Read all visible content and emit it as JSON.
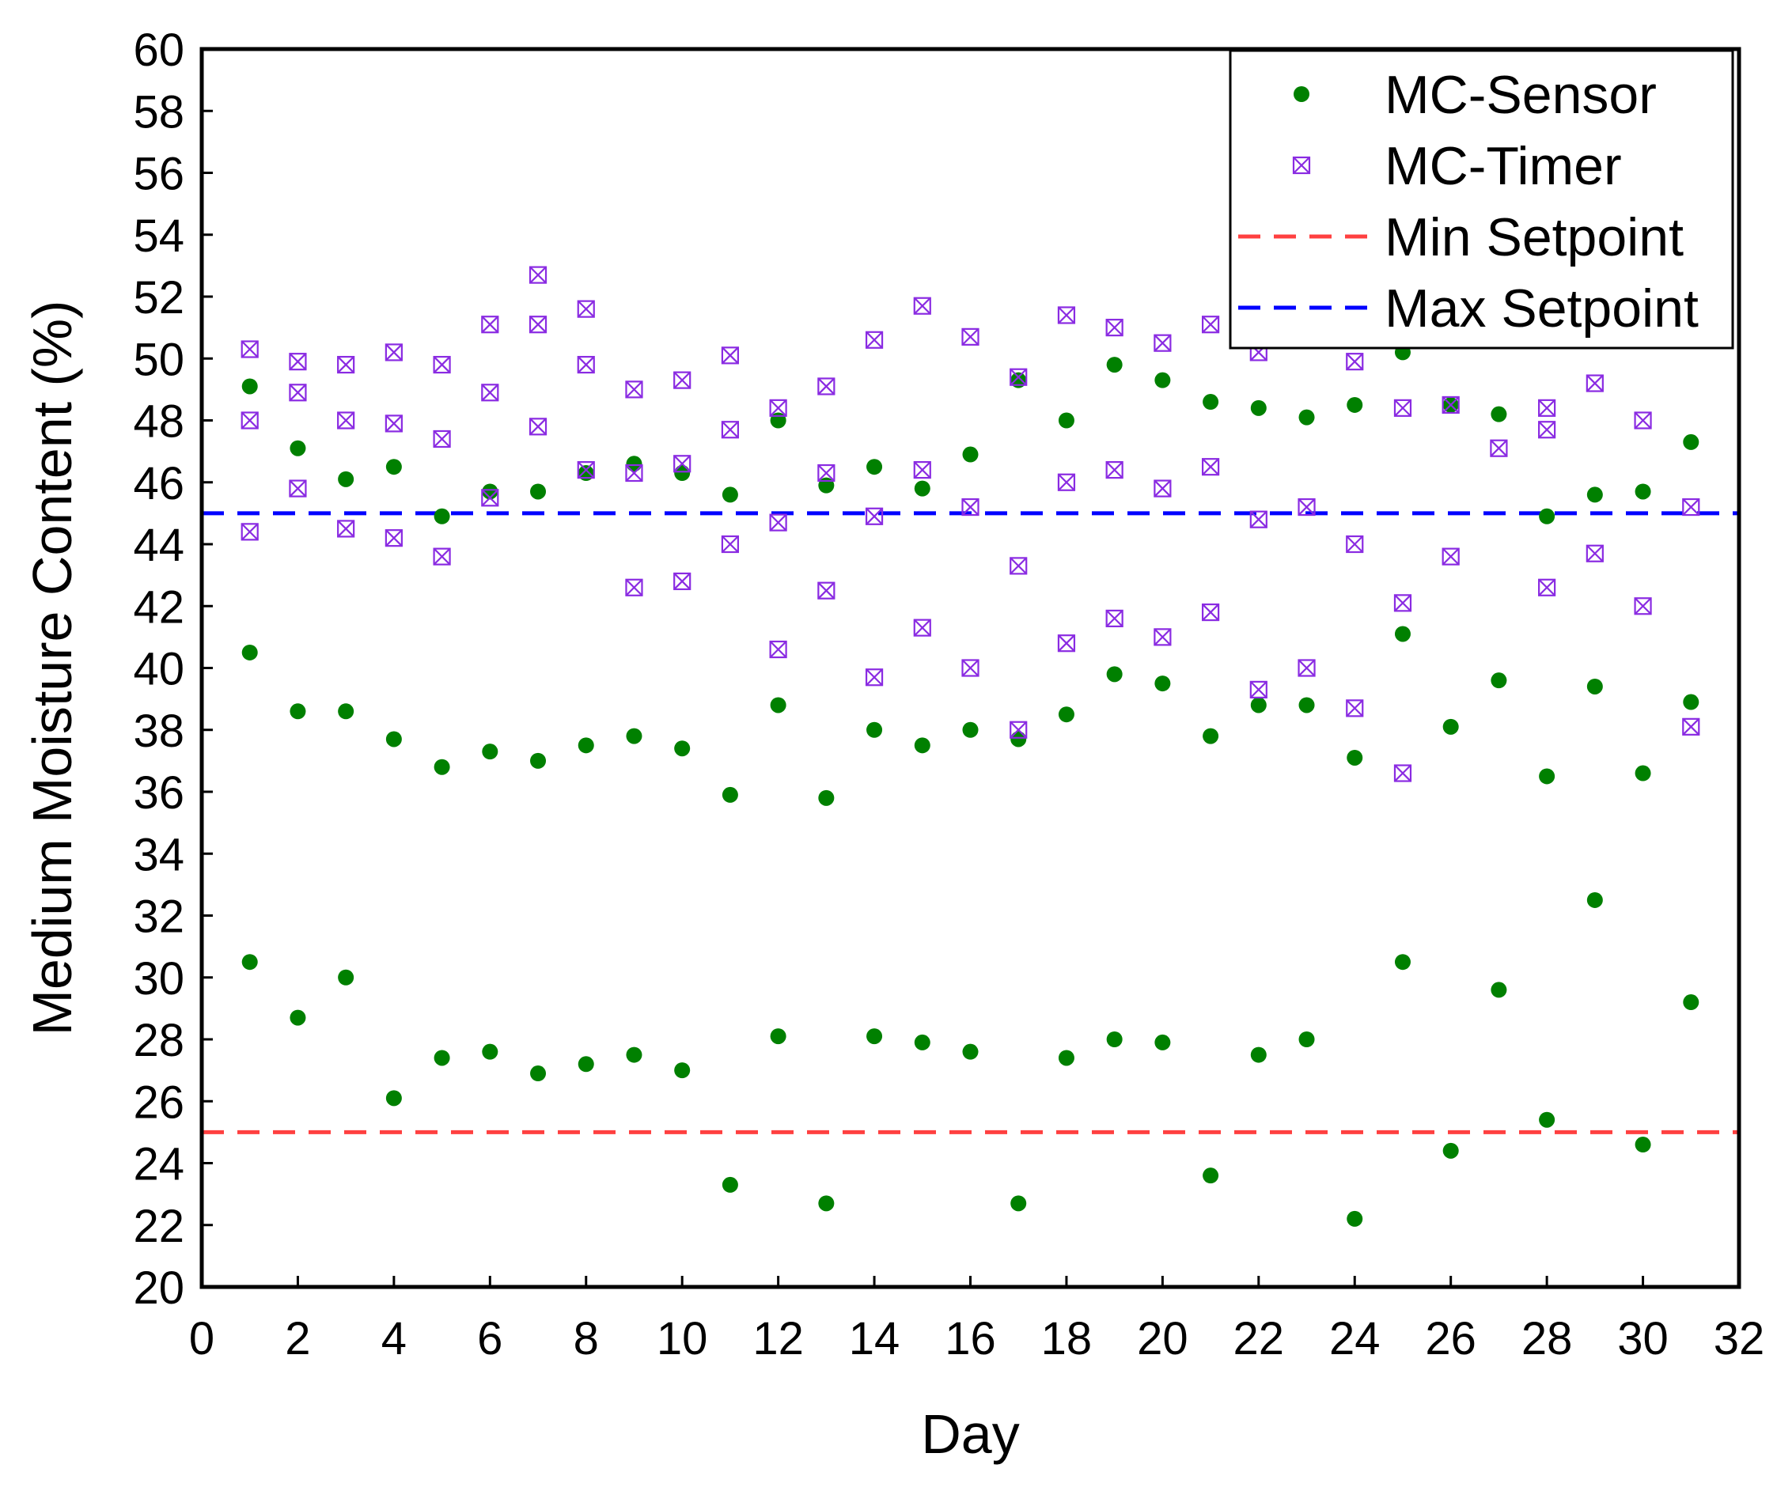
{
  "chart_data": {
    "type": "scatter",
    "title": "",
    "xlabel": "Day",
    "ylabel": "Medium Moisture Content (%)",
    "xlim": [
      0,
      32
    ],
    "ylim": [
      20,
      60
    ],
    "xticks": [
      0,
      2,
      4,
      6,
      8,
      10,
      12,
      14,
      16,
      18,
      20,
      22,
      24,
      26,
      28,
      30,
      32
    ],
    "yticks": [
      20,
      22,
      24,
      26,
      28,
      30,
      32,
      34,
      36,
      38,
      40,
      42,
      44,
      46,
      48,
      50,
      52,
      54,
      56,
      58,
      60
    ],
    "grid": false,
    "legend_position": "top-right",
    "series": [
      {
        "name": "MC-Sensor",
        "marker": "circle",
        "color": "#008000",
        "points": [
          [
            1,
            49.1
          ],
          [
            1,
            40.5
          ],
          [
            1,
            30.5
          ],
          [
            2,
            47.1
          ],
          [
            2,
            38.6
          ],
          [
            2,
            28.7
          ],
          [
            3,
            46.1
          ],
          [
            3,
            38.6
          ],
          [
            3,
            30.0
          ],
          [
            4,
            46.5
          ],
          [
            4,
            37.7
          ],
          [
            4,
            26.1
          ],
          [
            5,
            44.9
          ],
          [
            5,
            36.8
          ],
          [
            5,
            27.4
          ],
          [
            6,
            45.7
          ],
          [
            6,
            37.3
          ],
          [
            6,
            27.6
          ],
          [
            7,
            45.7
          ],
          [
            7,
            37.0
          ],
          [
            7,
            26.9
          ],
          [
            8,
            46.3
          ],
          [
            8,
            37.5
          ],
          [
            8,
            27.2
          ],
          [
            9,
            46.6
          ],
          [
            9,
            37.8
          ],
          [
            9,
            27.5
          ],
          [
            10,
            46.3
          ],
          [
            10,
            37.4
          ],
          [
            10,
            27.0
          ],
          [
            11,
            45.6
          ],
          [
            11,
            35.9
          ],
          [
            11,
            23.3
          ],
          [
            12,
            48.0
          ],
          [
            12,
            38.8
          ],
          [
            12,
            28.1
          ],
          [
            13,
            45.9
          ],
          [
            13,
            35.8
          ],
          [
            13,
            22.7
          ],
          [
            14,
            46.5
          ],
          [
            14,
            38.0
          ],
          [
            14,
            28.1
          ],
          [
            15,
            45.8
          ],
          [
            15,
            37.5
          ],
          [
            15,
            27.9
          ],
          [
            16,
            46.9
          ],
          [
            16,
            38.0
          ],
          [
            16,
            27.6
          ],
          [
            17,
            49.3
          ],
          [
            17,
            37.7
          ],
          [
            17,
            22.7
          ],
          [
            18,
            48.0
          ],
          [
            18,
            38.5
          ],
          [
            18,
            27.4
          ],
          [
            19,
            49.8
          ],
          [
            19,
            39.8
          ],
          [
            19,
            28.0
          ],
          [
            20,
            49.3
          ],
          [
            20,
            39.5
          ],
          [
            20,
            27.9
          ],
          [
            21,
            48.6
          ],
          [
            21,
            37.8
          ],
          [
            21,
            23.6
          ],
          [
            22,
            48.4
          ],
          [
            22,
            38.8
          ],
          [
            22,
            27.5
          ],
          [
            23,
            48.1
          ],
          [
            23,
            38.8
          ],
          [
            23,
            28.0
          ],
          [
            24,
            48.5
          ],
          [
            24,
            37.1
          ],
          [
            24,
            22.2
          ],
          [
            25,
            50.2
          ],
          [
            25,
            41.1
          ],
          [
            25,
            30.5
          ],
          [
            26,
            48.5
          ],
          [
            26,
            38.1
          ],
          [
            26,
            24.4
          ],
          [
            27,
            48.2
          ],
          [
            27,
            39.6
          ],
          [
            27,
            29.6
          ],
          [
            28,
            44.9
          ],
          [
            28,
            36.5
          ],
          [
            28,
            25.4
          ],
          [
            29,
            45.6
          ],
          [
            29,
            39.4
          ],
          [
            29,
            32.5
          ],
          [
            30,
            45.7
          ],
          [
            30,
            36.6
          ],
          [
            30,
            24.6
          ],
          [
            31,
            47.3
          ],
          [
            31,
            38.9
          ],
          [
            31,
            29.2
          ]
        ]
      },
      {
        "name": "MC-Timer",
        "marker": "boxed-x",
        "color": "#8a2be2",
        "points": [
          [
            1,
            50.3
          ],
          [
            1,
            48.0
          ],
          [
            1,
            44.4
          ],
          [
            2,
            49.9
          ],
          [
            2,
            48.9
          ],
          [
            2,
            45.8
          ],
          [
            3,
            49.8
          ],
          [
            3,
            48.0
          ],
          [
            3,
            44.5
          ],
          [
            4,
            50.2
          ],
          [
            4,
            47.9
          ],
          [
            4,
            44.2
          ],
          [
            5,
            49.8
          ],
          [
            5,
            47.4
          ],
          [
            5,
            43.6
          ],
          [
            6,
            51.1
          ],
          [
            6,
            48.9
          ],
          [
            6,
            45.5
          ],
          [
            7,
            52.7
          ],
          [
            7,
            51.1
          ],
          [
            7,
            47.8
          ],
          [
            8,
            51.6
          ],
          [
            8,
            49.8
          ],
          [
            8,
            46.4
          ],
          [
            9,
            49.0
          ],
          [
            9,
            46.3
          ],
          [
            9,
            42.6
          ],
          [
            10,
            49.3
          ],
          [
            10,
            46.6
          ],
          [
            10,
            42.8
          ],
          [
            11,
            50.1
          ],
          [
            11,
            47.7
          ],
          [
            11,
            44.0
          ],
          [
            12,
            48.4
          ],
          [
            12,
            44.7
          ],
          [
            12,
            40.6
          ],
          [
            13,
            49.1
          ],
          [
            13,
            46.3
          ],
          [
            13,
            42.5
          ],
          [
            14,
            50.6
          ],
          [
            14,
            44.9
          ],
          [
            14,
            39.7
          ],
          [
            15,
            51.7
          ],
          [
            15,
            46.4
          ],
          [
            15,
            41.3
          ],
          [
            16,
            50.7
          ],
          [
            16,
            45.2
          ],
          [
            16,
            40.0
          ],
          [
            17,
            49.4
          ],
          [
            17,
            43.3
          ],
          [
            17,
            38.0
          ],
          [
            18,
            51.4
          ],
          [
            18,
            46.0
          ],
          [
            18,
            40.8
          ],
          [
            19,
            51.0
          ],
          [
            19,
            46.4
          ],
          [
            19,
            41.6
          ],
          [
            20,
            50.5
          ],
          [
            20,
            45.8
          ],
          [
            20,
            41.0
          ],
          [
            21,
            51.1
          ],
          [
            21,
            46.5
          ],
          [
            21,
            41.8
          ],
          [
            22,
            50.2
          ],
          [
            22,
            44.8
          ],
          [
            22,
            39.3
          ],
          [
            23,
            45.2
          ],
          [
            23,
            40.0
          ],
          [
            24,
            49.9
          ],
          [
            24,
            44.0
          ],
          [
            24,
            38.7
          ],
          [
            25,
            48.4
          ],
          [
            25,
            42.1
          ],
          [
            25,
            36.6
          ],
          [
            26,
            48.5
          ],
          [
            26,
            43.6
          ],
          [
            27,
            47.1
          ],
          [
            28,
            48.4
          ],
          [
            28,
            47.7
          ],
          [
            28,
            42.6
          ],
          [
            29,
            49.2
          ],
          [
            29,
            43.7
          ],
          [
            30,
            48.0
          ],
          [
            30,
            42.0
          ],
          [
            31,
            45.2
          ],
          [
            31,
            38.1
          ]
        ]
      },
      {
        "name": "Min Setpoint",
        "type": "hline",
        "style": "dashed",
        "color": "#ff4040",
        "y": 25
      },
      {
        "name": "Max Setpoint",
        "type": "hline",
        "style": "dashed",
        "color": "#0000ff",
        "y": 45
      }
    ]
  }
}
